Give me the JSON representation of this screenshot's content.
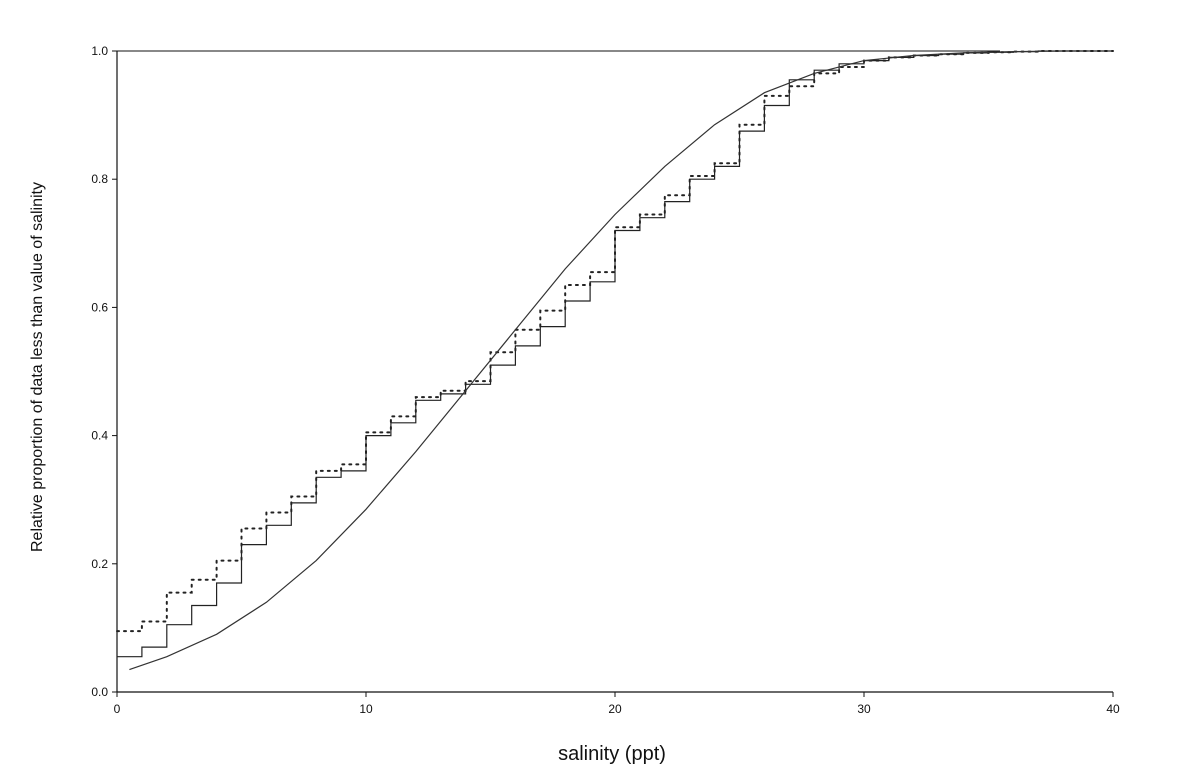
{
  "chart_data": {
    "type": "line",
    "title": "",
    "xlabel": "salinity (ppt)",
    "ylabel": "Relative proportion of data less than value of salinity",
    "xlim": [
      0,
      40
    ],
    "ylim": [
      0.0,
      1.0
    ],
    "xticks": [
      "0",
      "10",
      "20",
      "30",
      "40"
    ],
    "yticks": [
      "0.0",
      "0.2",
      "0.4",
      "0.6",
      "0.8",
      "1.0"
    ],
    "grid": false,
    "legend": "none",
    "series": [
      {
        "style": "solid-step",
        "color": "#222222",
        "x": [
          0,
          1,
          2,
          3,
          4,
          5,
          6,
          7,
          8,
          9,
          10,
          11,
          12,
          13,
          14,
          15,
          16,
          17,
          18,
          19,
          20,
          21,
          22,
          23,
          24,
          25,
          26,
          27,
          28,
          29,
          30,
          31,
          32,
          33,
          34,
          35,
          36,
          37,
          38,
          39
        ],
        "y": [
          0.055,
          0.07,
          0.105,
          0.135,
          0.17,
          0.23,
          0.26,
          0.295,
          0.335,
          0.345,
          0.4,
          0.42,
          0.455,
          0.465,
          0.48,
          0.51,
          0.54,
          0.57,
          0.61,
          0.64,
          0.72,
          0.74,
          0.765,
          0.8,
          0.82,
          0.875,
          0.915,
          0.955,
          0.97,
          0.98,
          0.985,
          0.99,
          0.993,
          0.995,
          0.997,
          0.998,
          0.999,
          1.0,
          1.0,
          1.0
        ]
      },
      {
        "style": "dotted-step",
        "color": "#222222",
        "x": [
          0,
          1,
          2,
          3,
          4,
          5,
          6,
          7,
          8,
          9,
          10,
          11,
          12,
          13,
          14,
          15,
          16,
          17,
          18,
          19,
          20,
          21,
          22,
          23,
          24,
          25,
          26,
          27,
          28,
          29,
          30,
          31,
          32,
          33,
          34,
          35,
          36,
          37,
          38,
          39
        ],
        "y": [
          0.095,
          0.11,
          0.155,
          0.175,
          0.205,
          0.255,
          0.28,
          0.305,
          0.345,
          0.355,
          0.405,
          0.43,
          0.46,
          0.47,
          0.485,
          0.53,
          0.565,
          0.595,
          0.635,
          0.655,
          0.725,
          0.745,
          0.775,
          0.805,
          0.825,
          0.885,
          0.93,
          0.945,
          0.965,
          0.975,
          0.985,
          0.99,
          0.993,
          0.995,
          0.997,
          0.998,
          0.999,
          1.0,
          1.0,
          1.0
        ]
      },
      {
        "style": "smooth-solid",
        "color": "#333333",
        "x": [
          0.5,
          2,
          4,
          6,
          8,
          10,
          12,
          14,
          16,
          18,
          20,
          22,
          24,
          26,
          28,
          30,
          32,
          34,
          36,
          38,
          39
        ],
        "y": [
          0.035,
          0.055,
          0.09,
          0.14,
          0.205,
          0.285,
          0.375,
          0.47,
          0.565,
          0.66,
          0.745,
          0.82,
          0.885,
          0.935,
          0.965,
          0.985,
          0.993,
          0.997,
          0.999,
          1.0,
          1.0
        ]
      }
    ]
  }
}
